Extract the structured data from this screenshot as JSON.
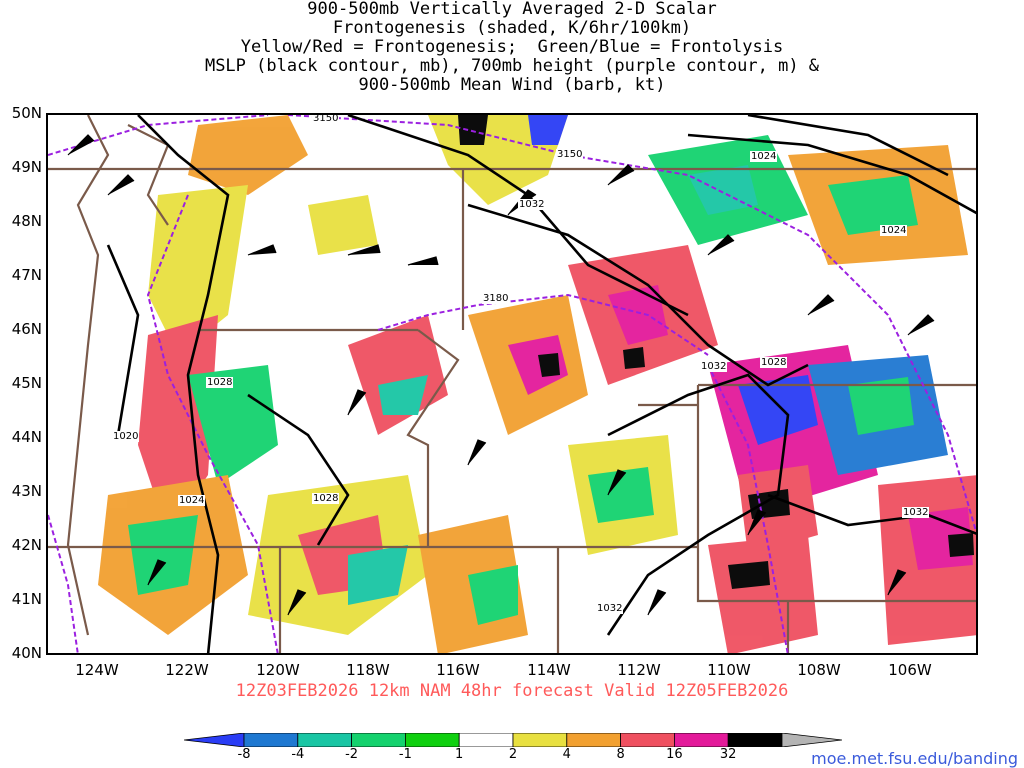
{
  "title_lines": [
    "900-500mb Vertically Averaged 2-D Scalar",
    "Frontogenesis (shaded, K/6hr/100km)",
    "Yellow/Red = Frontogenesis;  Green/Blue = Frontolysis",
    "MSLP (black contour, mb), 700mb height (purple contour, m) &",
    "900-500mb Mean Wind (barb, kt)"
  ],
  "lat_labels": [
    "50N",
    "49N",
    "48N",
    "47N",
    "46N",
    "45N",
    "44N",
    "43N",
    "42N",
    "41N",
    "40N"
  ],
  "lon_labels": [
    "124W",
    "122W",
    "120W",
    "118W",
    "116W",
    "114W",
    "112W",
    "110W",
    "108W",
    "106W"
  ],
  "valid_line": "12Z03FEB2026 12km NAM 48hr forecast Valid 12Z05FEB2026",
  "legend": {
    "labels": [
      "-8",
      "-4",
      "-2",
      "-1",
      "1",
      "2",
      "4",
      "8",
      "16",
      "32"
    ],
    "colors": [
      "#2a3df5",
      "#1f78d1",
      "#19c6a4",
      "#14d26e",
      "#10d010",
      "#ffffff",
      "#e8e040",
      "#f2a030",
      "#ef5060",
      "#e31a9a",
      "#000000",
      "#b4b4b4"
    ]
  },
  "contour_labels": {
    "height": [
      "3150",
      "3150",
      "3180"
    ],
    "mslp": [
      "1024",
      "1032",
      "1024",
      "1032",
      "1028",
      "1028",
      "1020",
      "1024",
      "1028",
      "1032",
      "1032"
    ]
  },
  "url": "moe.met.fsu.edu/banding"
}
